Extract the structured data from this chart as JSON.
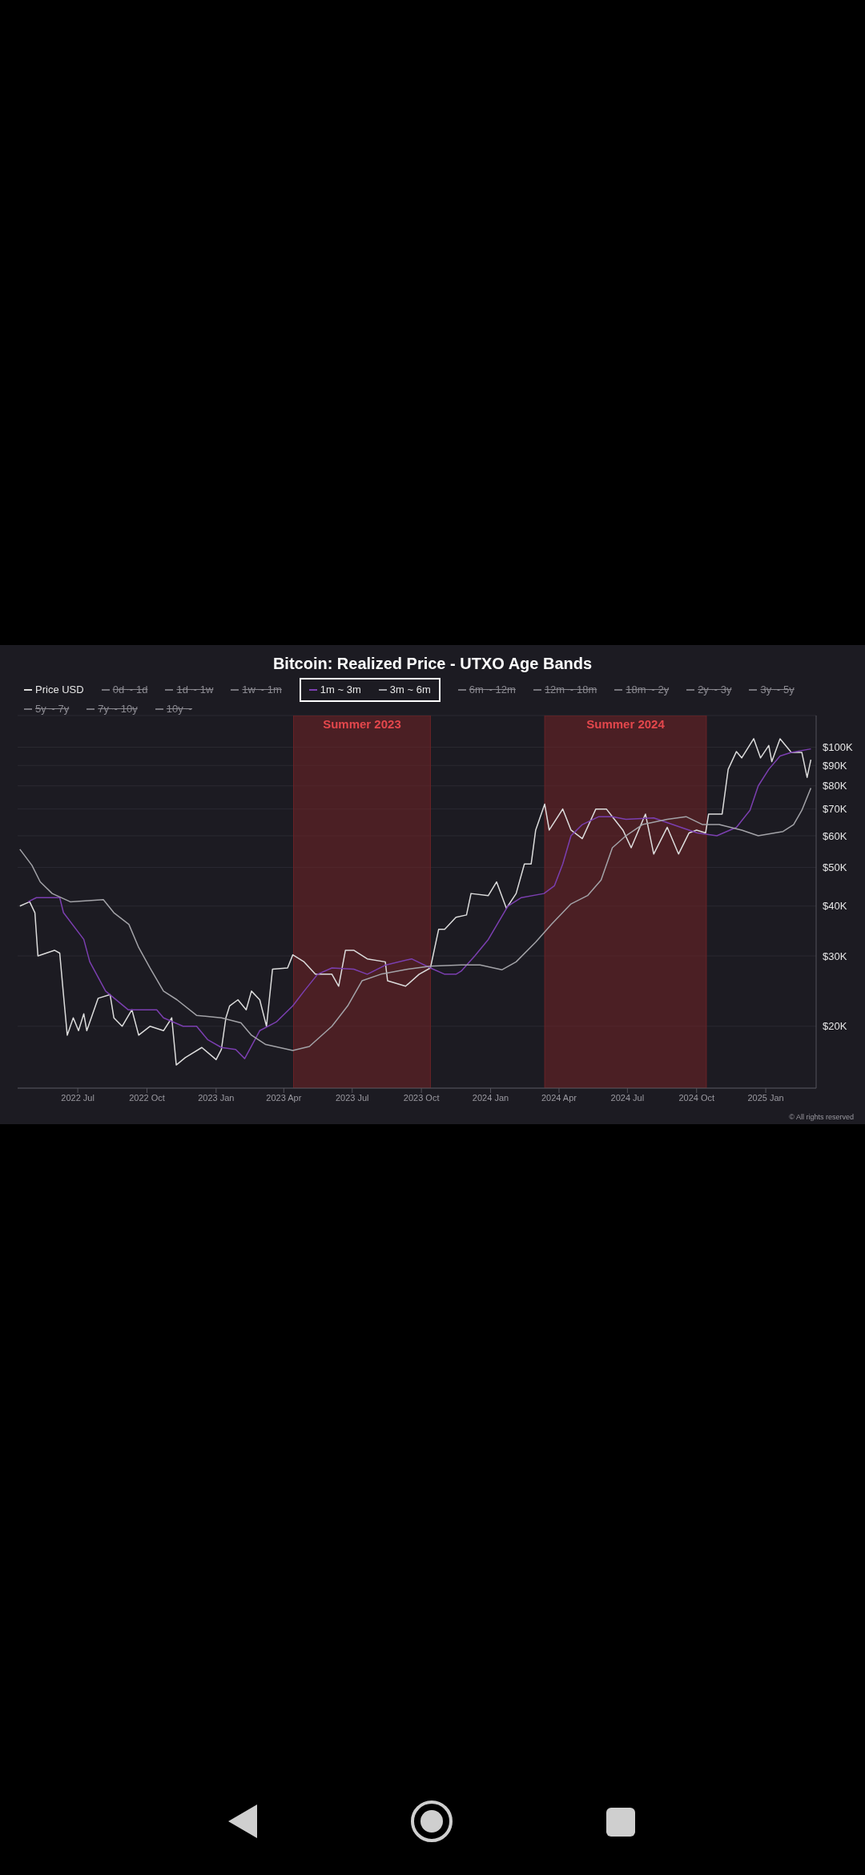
{
  "chart_data": {
    "type": "line",
    "title": "Bitcoin: Realized Price - UTXO Age Bands",
    "log": "y",
    "grid": "y",
    "legend": "top",
    "xlim": [
      "2022-04-12",
      "2025-03-09"
    ],
    "xticks": [
      {
        "value": "2022-07-01",
        "label": "2022 Jul"
      },
      {
        "value": "2022-10-01",
        "label": "2022 Oct"
      },
      {
        "value": "2023-01-01",
        "label": "2023 Jan"
      },
      {
        "value": "2023-04-01",
        "label": "2023 Apr"
      },
      {
        "value": "2023-07-01",
        "label": "2023 Jul"
      },
      {
        "value": "2023-10-01",
        "label": "2023 Oct"
      },
      {
        "value": "2024-01-01",
        "label": "2024 Jan"
      },
      {
        "value": "2024-04-01",
        "label": "2024 Apr"
      },
      {
        "value": "2024-07-01",
        "label": "2024 Jul"
      },
      {
        "value": "2024-10-01",
        "label": "2024 Oct"
      },
      {
        "value": "2025-01-01",
        "label": "2025 Jan"
      }
    ],
    "ylim": [
      14000,
      120000
    ],
    "yticks": [
      {
        "value": 20000,
        "label": "$20K"
      },
      {
        "value": 30000,
        "label": "$30K"
      },
      {
        "value": 40000,
        "label": "$40K"
      },
      {
        "value": 50000,
        "label": "$50K"
      },
      {
        "value": 60000,
        "label": "$60K"
      },
      {
        "value": 70000,
        "label": "$70K"
      },
      {
        "value": 80000,
        "label": "$80K"
      },
      {
        "value": 90000,
        "label": "$90K"
      },
      {
        "value": 100000,
        "label": "$100K"
      }
    ],
    "bands": [
      {
        "axis": "x",
        "from": "2023-04-14",
        "to": "2023-10-13",
        "label": "Summer 2023",
        "color": "#6b2327"
      },
      {
        "axis": "x",
        "from": "2024-03-13",
        "to": "2024-10-14",
        "label": "Summer 2024",
        "color": "#6b2327"
      }
    ],
    "annotations": [
      "© All rights reserved"
    ],
    "series": [
      {
        "name": "Price USD",
        "color": "#dcdcdc",
        "x": [
          "2022-04-15",
          "2022-04-28",
          "2022-05-05",
          "2022-05-09",
          "2022-05-31",
          "2022-06-07",
          "2022-06-12",
          "2022-06-17",
          "2022-06-25",
          "2022-07-02",
          "2022-07-09",
          "2022-07-13",
          "2022-07-28",
          "2022-08-13",
          "2022-08-18",
          "2022-08-29",
          "2022-09-11",
          "2022-09-20",
          "2022-10-05",
          "2022-10-23",
          "2022-11-03",
          "2022-11-09",
          "2022-11-21",
          "2022-12-13",
          "2023-01-01",
          "2023-01-08",
          "2023-01-14",
          "2023-01-19",
          "2023-01-30",
          "2023-02-10",
          "2023-02-17",
          "2023-02-28",
          "2023-03-09",
          "2023-03-17",
          "2023-04-06",
          "2023-04-13",
          "2023-04-28",
          "2023-05-13",
          "2023-06-04",
          "2023-06-13",
          "2023-06-22",
          "2023-07-03",
          "2023-07-21",
          "2023-08-14",
          "2023-08-17",
          "2023-09-10",
          "2023-09-28",
          "2023-10-13",
          "2023-10-24",
          "2023-11-01",
          "2023-11-16",
          "2023-11-30",
          "2023-12-06",
          "2023-12-29",
          "2024-01-09",
          "2024-01-22",
          "2024-02-04",
          "2024-02-15",
          "2024-02-24",
          "2024-03-01",
          "2024-03-13",
          "2024-03-19",
          "2024-04-06",
          "2024-04-17",
          "2024-05-02",
          "2024-05-20",
          "2024-06-03",
          "2024-06-25",
          "2024-07-06",
          "2024-07-25",
          "2024-08-05",
          "2024-08-23",
          "2024-09-07",
          "2024-09-21",
          "2024-10-01",
          "2024-10-13",
          "2024-10-17",
          "2024-11-04",
          "2024-11-12",
          "2024-11-23",
          "2024-11-30",
          "2024-12-16",
          "2024-12-25",
          "2025-01-05",
          "2025-01-09",
          "2025-01-20",
          "2025-02-04",
          "2025-02-18",
          "2025-02-25",
          "2025-03-02"
        ],
        "values": [
          40000,
          41000,
          38500,
          30000,
          31000,
          30500,
          24000,
          19000,
          21000,
          19500,
          21500,
          19500,
          23500,
          24000,
          21000,
          20000,
          22000,
          19000,
          20000,
          19500,
          21000,
          16000,
          16700,
          17700,
          16500,
          17500,
          21000,
          22500,
          23300,
          22000,
          24500,
          23300,
          20000,
          27800,
          28000,
          30200,
          29000,
          27000,
          27000,
          25200,
          31000,
          31000,
          29500,
          29000,
          26000,
          25200,
          27000,
          28000,
          35000,
          35000,
          37500,
          38000,
          43000,
          42500,
          46000,
          39500,
          43000,
          51000,
          51000,
          62000,
          72000,
          62000,
          70000,
          62000,
          59000,
          70000,
          70000,
          62000,
          56000,
          68000,
          54000,
          63000,
          54000,
          61000,
          62000,
          61000,
          68000,
          68000,
          88000,
          97500,
          94000,
          105000,
          94000,
          101000,
          92000,
          105000,
          97000,
          97000,
          84000,
          93000
        ]
      },
      {
        "name": "0d ~ 1d",
        "color": "#76757c"
      },
      {
        "name": "1d ~ 1w",
        "color": "#76757c"
      },
      {
        "name": "1w ~ 1m",
        "color": "#76757c"
      },
      {
        "name": "1m ~ 3m",
        "color": "#7b3fb0",
        "x": [
          "2022-04-26",
          "2022-05-07",
          "2022-06-07",
          "2022-06-12",
          "2022-07-09",
          "2022-07-17",
          "2022-08-07",
          "2022-09-06",
          "2022-09-24",
          "2022-10-14",
          "2022-10-23",
          "2022-11-18",
          "2022-12-06",
          "2022-12-21",
          "2023-01-08",
          "2023-01-27",
          "2023-02-08",
          "2023-02-28",
          "2023-03-22",
          "2023-04-13",
          "2023-04-28",
          "2023-05-16",
          "2023-06-04",
          "2023-07-03",
          "2023-07-21",
          "2023-08-15",
          "2023-09-18",
          "2023-10-13",
          "2023-11-01",
          "2023-11-16",
          "2023-11-23",
          "2023-12-11",
          "2023-12-29",
          "2024-01-24",
          "2024-02-11",
          "2024-03-12",
          "2024-03-26",
          "2024-04-06",
          "2024-04-17",
          "2024-05-02",
          "2024-05-24",
          "2024-06-11",
          "2024-06-29",
          "2024-08-05",
          "2024-09-10",
          "2024-10-02",
          "2024-10-28",
          "2024-11-23",
          "2024-12-11",
          "2024-12-22",
          "2025-01-05",
          "2025-01-20",
          "2025-02-04",
          "2025-03-02"
        ],
        "values": [
          41000,
          42000,
          42000,
          38500,
          33000,
          29000,
          24500,
          22000,
          22000,
          22000,
          21000,
          20000,
          20000,
          18500,
          17700,
          17500,
          16600,
          19500,
          20500,
          22500,
          24500,
          27000,
          28000,
          27800,
          27000,
          28500,
          29500,
          28000,
          27000,
          27000,
          27500,
          30000,
          33000,
          40000,
          42000,
          43000,
          45000,
          51000,
          60000,
          64000,
          67000,
          67000,
          66000,
          66500,
          63000,
          61000,
          60000,
          63000,
          69500,
          80000,
          88000,
          95000,
          97000,
          99000
        ]
      },
      {
        "name": "3m ~ 6m",
        "color": "#a3a3a8",
        "x": [
          "2022-04-15",
          "2022-05-01",
          "2022-05-12",
          "2022-05-28",
          "2022-06-21",
          "2022-08-04",
          "2022-08-18",
          "2022-09-07",
          "2022-09-20",
          "2022-10-05",
          "2022-10-23",
          "2022-11-10",
          "2022-12-06",
          "2023-01-08",
          "2023-02-03",
          "2023-02-17",
          "2023-03-08",
          "2023-04-13",
          "2023-05-05",
          "2023-06-04",
          "2023-06-25",
          "2023-07-14",
          "2023-08-08",
          "2023-09-13",
          "2023-10-13",
          "2023-11-23",
          "2023-12-18",
          "2024-01-16",
          "2024-02-04",
          "2024-03-01",
          "2024-03-22",
          "2024-04-17",
          "2024-05-09",
          "2024-05-27",
          "2024-06-11",
          "2024-06-29",
          "2024-07-21",
          "2024-08-23",
          "2024-09-17",
          "2024-10-09",
          "2024-10-31",
          "2024-11-30",
          "2024-12-22",
          "2025-01-24",
          "2025-02-07",
          "2025-02-18",
          "2025-03-02"
        ],
        "values": [
          55500,
          50600,
          46000,
          43000,
          41000,
          41500,
          38500,
          36000,
          31500,
          28000,
          24500,
          23300,
          21300,
          21000,
          20400,
          19000,
          18000,
          17400,
          17800,
          20000,
          22500,
          26000,
          27000,
          27800,
          28300,
          28500,
          28500,
          27700,
          29000,
          32500,
          36000,
          40500,
          42500,
          46500,
          56000,
          60000,
          64000,
          66000,
          67000,
          64000,
          64000,
          62000,
          60000,
          61500,
          64000,
          69500,
          79000
        ]
      },
      {
        "name": "6m ~ 12m",
        "color": "#76757c"
      },
      {
        "name": "12m ~ 18m",
        "color": "#76757c"
      },
      {
        "name": "18m ~ 2y",
        "color": "#76757c"
      },
      {
        "name": "2y ~ 3y",
        "color": "#76757c"
      },
      {
        "name": "3y ~ 5y",
        "color": "#76757c"
      },
      {
        "name": "5y ~ 7y",
        "color": "#76757c"
      },
      {
        "name": "7y ~ 10y",
        "color": "#76757c"
      },
      {
        "name": "10y ~",
        "color": "#76757c"
      }
    ]
  }
}
